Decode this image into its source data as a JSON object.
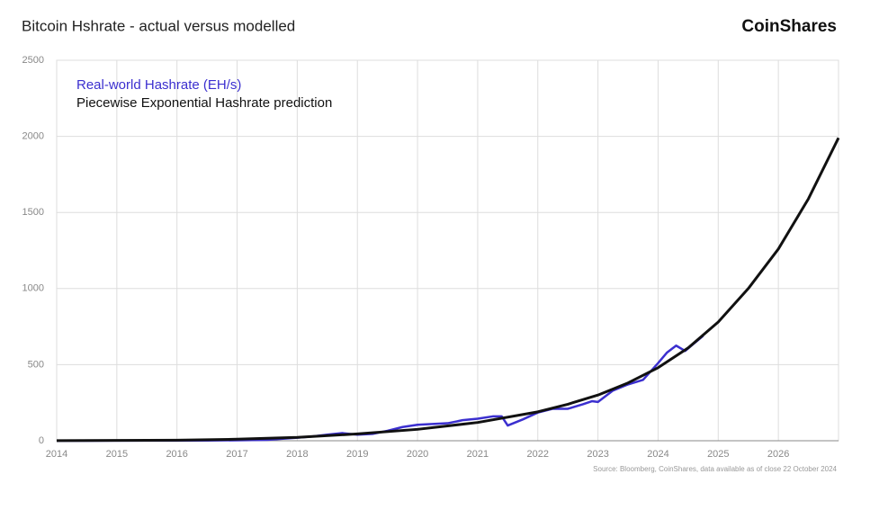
{
  "chart_data": {
    "type": "line",
    "title": "Bitcoin Hshrate - actual versus modelled",
    "brand": "CoinShares",
    "source": "Source: Bloomberg, CoinShares, data available as of close 22 October 2024",
    "xlim": [
      2014,
      2027
    ],
    "xticks": [
      2014,
      2015,
      2016,
      2017,
      2018,
      2019,
      2020,
      2021,
      2022,
      2023,
      2024,
      2025,
      2026
    ],
    "ylim": [
      0,
      2500
    ],
    "yticks": [
      0,
      500,
      1000,
      1500,
      2000,
      2500
    ],
    "grid": true,
    "legend": "top-left",
    "series": [
      {
        "name": "Real-world Hashrate (EH/s)",
        "color": "#3b2fcf",
        "x": [
          2014,
          2014.5,
          2015,
          2015.5,
          2016,
          2016.5,
          2017,
          2017.5,
          2018,
          2018.25,
          2018.5,
          2018.75,
          2019,
          2019.25,
          2019.5,
          2019.75,
          2020,
          2020.25,
          2020.5,
          2020.75,
          2021,
          2021.25,
          2021.4,
          2021.5,
          2021.75,
          2022,
          2022.25,
          2022.5,
          2022.75,
          2022.9,
          2023,
          2023.25,
          2023.5,
          2023.75,
          2024,
          2024.15,
          2024.3,
          2024.45,
          2024.6,
          2024.75
        ],
        "values": [
          0.1,
          0.2,
          0.4,
          0.5,
          1,
          1.5,
          3,
          6,
          20,
          28,
          40,
          50,
          40,
          45,
          65,
          90,
          105,
          110,
          115,
          135,
          145,
          160,
          160,
          100,
          140,
          185,
          210,
          210,
          240,
          260,
          255,
          330,
          370,
          400,
          510,
          580,
          625,
          590,
          640,
          690
        ]
      },
      {
        "name": "Piecewise Exponential Hashrate prediction",
        "color": "#111111",
        "x": [
          2014,
          2015,
          2016,
          2017,
          2018,
          2019,
          2020,
          2021,
          2022,
          2022.5,
          2023,
          2023.5,
          2024,
          2024.5,
          2025,
          2025.5,
          2026,
          2026.5,
          2027
        ],
        "values": [
          1,
          2,
          4,
          10,
          22,
          45,
          75,
          120,
          190,
          240,
          300,
          380,
          480,
          610,
          780,
          1000,
          1260,
          1590,
          1990
        ]
      }
    ]
  }
}
